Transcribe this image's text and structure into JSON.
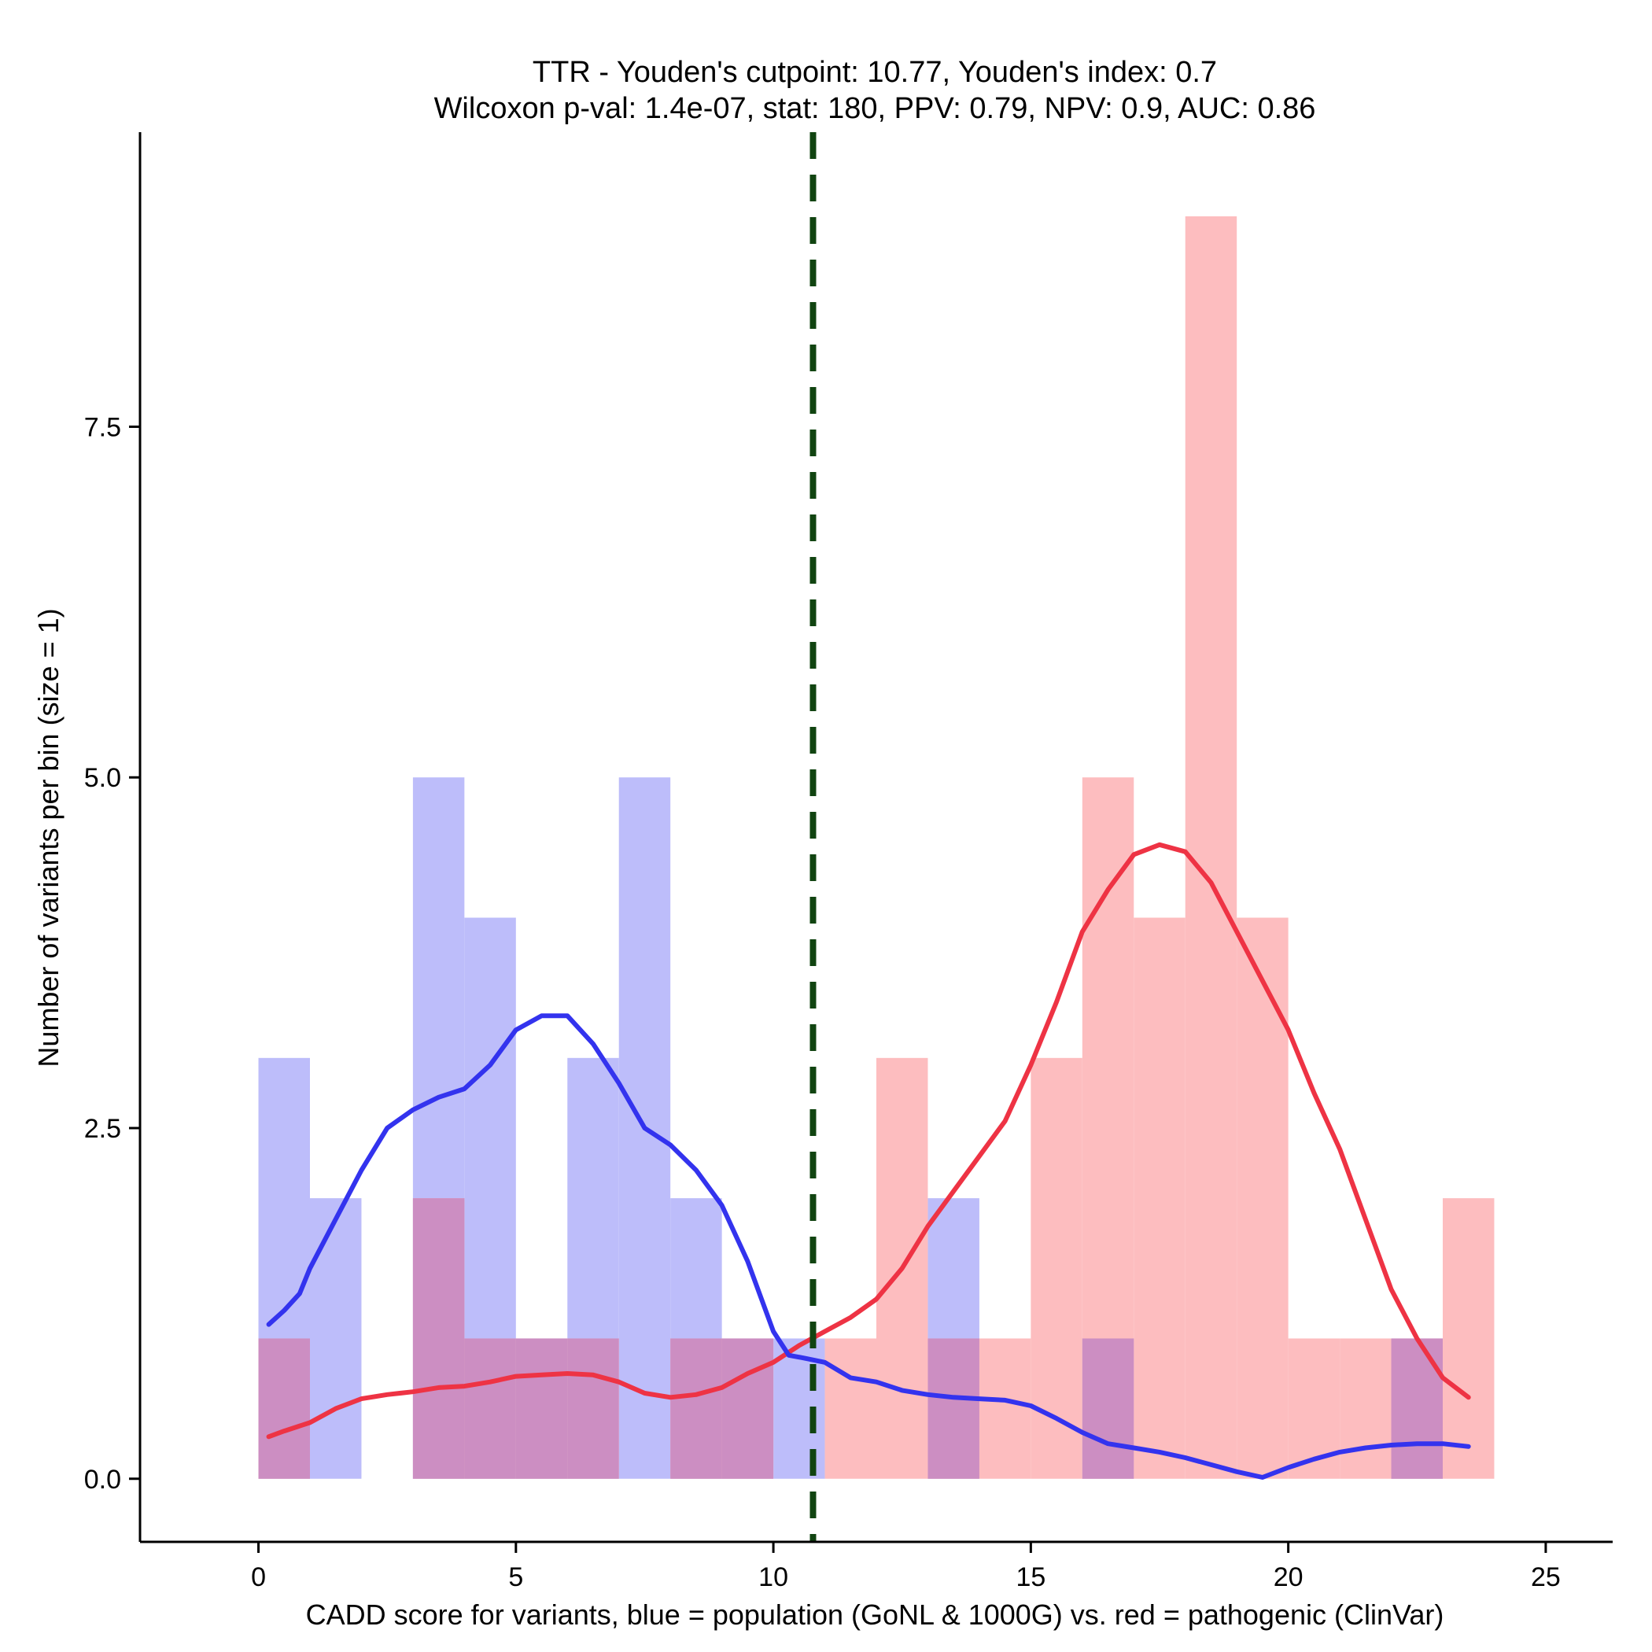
{
  "chart_data": {
    "type": "bar",
    "title_line1": "TTR - Youden's cutpoint: 10.77, Youden's index: 0.7",
    "title_line2": "Wilcoxon p-val: 1.4e-07, stat: 180, PPV: 0.79, NPV: 0.9, AUC: 0.86",
    "xlabel": "CADD score for variants, blue = population (GoNL & 1000G) vs. red = pathogenic (ClinVar)",
    "ylabel": "Number of variants per bin (size = 1)",
    "xlim": [
      -2.3,
      26.3
    ],
    "ylim": [
      -0.45,
      9.6
    ],
    "x_ticks": [
      0,
      5,
      10,
      15,
      20,
      25
    ],
    "x_tick_labels": [
      "0",
      "5",
      "10",
      "15",
      "20",
      "25"
    ],
    "y_ticks": [
      0,
      2.5,
      5,
      7.5
    ],
    "y_tick_labels": [
      "0.0",
      "2.5",
      "5.0",
      "7.5"
    ],
    "bin_width": 1,
    "cutpoint": 10.77,
    "colors": {
      "population_bar": "#bdbdfa",
      "pathogenic_bar": "#fdbdbf",
      "overlap_bar": "#cc8ec2",
      "population_line": "#3333ee",
      "pathogenic_line": "#ee3344",
      "cutpoint_line": "#114411"
    },
    "series": [
      {
        "name": "population (GoNL & 1000G)",
        "bin_starts": [
          0,
          1,
          2,
          3,
          4,
          5,
          6,
          7,
          8,
          9,
          10,
          11,
          12,
          13,
          14,
          15,
          16,
          17,
          18,
          19,
          20,
          21,
          22,
          23
        ],
        "values": [
          3,
          2,
          0,
          5,
          4,
          1,
          3,
          5,
          2,
          1,
          1,
          0,
          0,
          2,
          0,
          0,
          1,
          0,
          0,
          0,
          0,
          0,
          1,
          0
        ],
        "density_x": [
          0.2,
          0.5,
          0.8,
          1.0,
          1.5,
          2.0,
          2.5,
          3.0,
          3.5,
          4.0,
          4.5,
          5.0,
          5.5,
          6.0,
          6.5,
          7.0,
          7.5,
          8.0,
          8.5,
          9.0,
          9.5,
          10.0,
          10.3,
          10.6,
          11.0,
          11.5,
          12.0,
          12.5,
          13.0,
          13.5,
          14.0,
          14.5,
          15.0,
          15.5,
          16.0,
          16.5,
          17.0,
          17.5,
          18.0,
          18.5,
          19.0,
          19.5,
          20.0,
          20.5,
          21.0,
          21.5,
          22.0,
          22.5,
          23.0,
          23.5
        ],
        "density_y": [
          1.1,
          1.2,
          1.32,
          1.5,
          1.85,
          2.2,
          2.5,
          2.63,
          2.72,
          2.78,
          2.95,
          3.2,
          3.3,
          3.3,
          3.1,
          2.82,
          2.5,
          2.38,
          2.2,
          1.95,
          1.55,
          1.05,
          0.88,
          0.86,
          0.83,
          0.72,
          0.69,
          0.63,
          0.6,
          0.58,
          0.57,
          0.56,
          0.52,
          0.43,
          0.33,
          0.25,
          0.22,
          0.19,
          0.15,
          0.1,
          0.05,
          0.01,
          0.08,
          0.14,
          0.19,
          0.22,
          0.24,
          0.25,
          0.25,
          0.23
        ]
      },
      {
        "name": "pathogenic (ClinVar)",
        "bin_starts": [
          0,
          1,
          2,
          3,
          4,
          5,
          6,
          7,
          8,
          9,
          10,
          11,
          12,
          13,
          14,
          15,
          16,
          17,
          18,
          19,
          20,
          21,
          22,
          23
        ],
        "values": [
          1,
          0,
          0,
          2,
          1,
          1,
          1,
          0,
          1,
          1,
          0,
          1,
          3,
          1,
          1,
          3,
          5,
          4,
          9,
          4,
          1,
          1,
          1,
          2
        ],
        "density_x": [
          0.2,
          0.5,
          1.0,
          1.5,
          2.0,
          2.5,
          3.0,
          3.5,
          4.0,
          4.5,
          5.0,
          5.5,
          6.0,
          6.5,
          7.0,
          7.5,
          8.0,
          8.5,
          9.0,
          9.5,
          10.0,
          10.5,
          11.0,
          11.5,
          12.0,
          12.5,
          13.0,
          13.5,
          14.0,
          14.5,
          15.0,
          15.5,
          16.0,
          16.5,
          17.0,
          17.5,
          18.0,
          18.5,
          19.0,
          19.5,
          20.0,
          20.5,
          21.0,
          21.5,
          22.0,
          22.5,
          23.0,
          23.5
        ],
        "density_y": [
          0.3,
          0.34,
          0.4,
          0.5,
          0.57,
          0.6,
          0.62,
          0.65,
          0.66,
          0.69,
          0.73,
          0.74,
          0.75,
          0.74,
          0.69,
          0.61,
          0.58,
          0.6,
          0.65,
          0.75,
          0.83,
          0.95,
          1.05,
          1.15,
          1.28,
          1.5,
          1.8,
          2.05,
          2.3,
          2.55,
          2.95,
          3.4,
          3.9,
          4.2,
          4.45,
          4.52,
          4.47,
          4.25,
          3.9,
          3.55,
          3.2,
          2.75,
          2.35,
          1.85,
          1.35,
          1.0,
          0.72,
          0.58
        ]
      }
    ]
  }
}
